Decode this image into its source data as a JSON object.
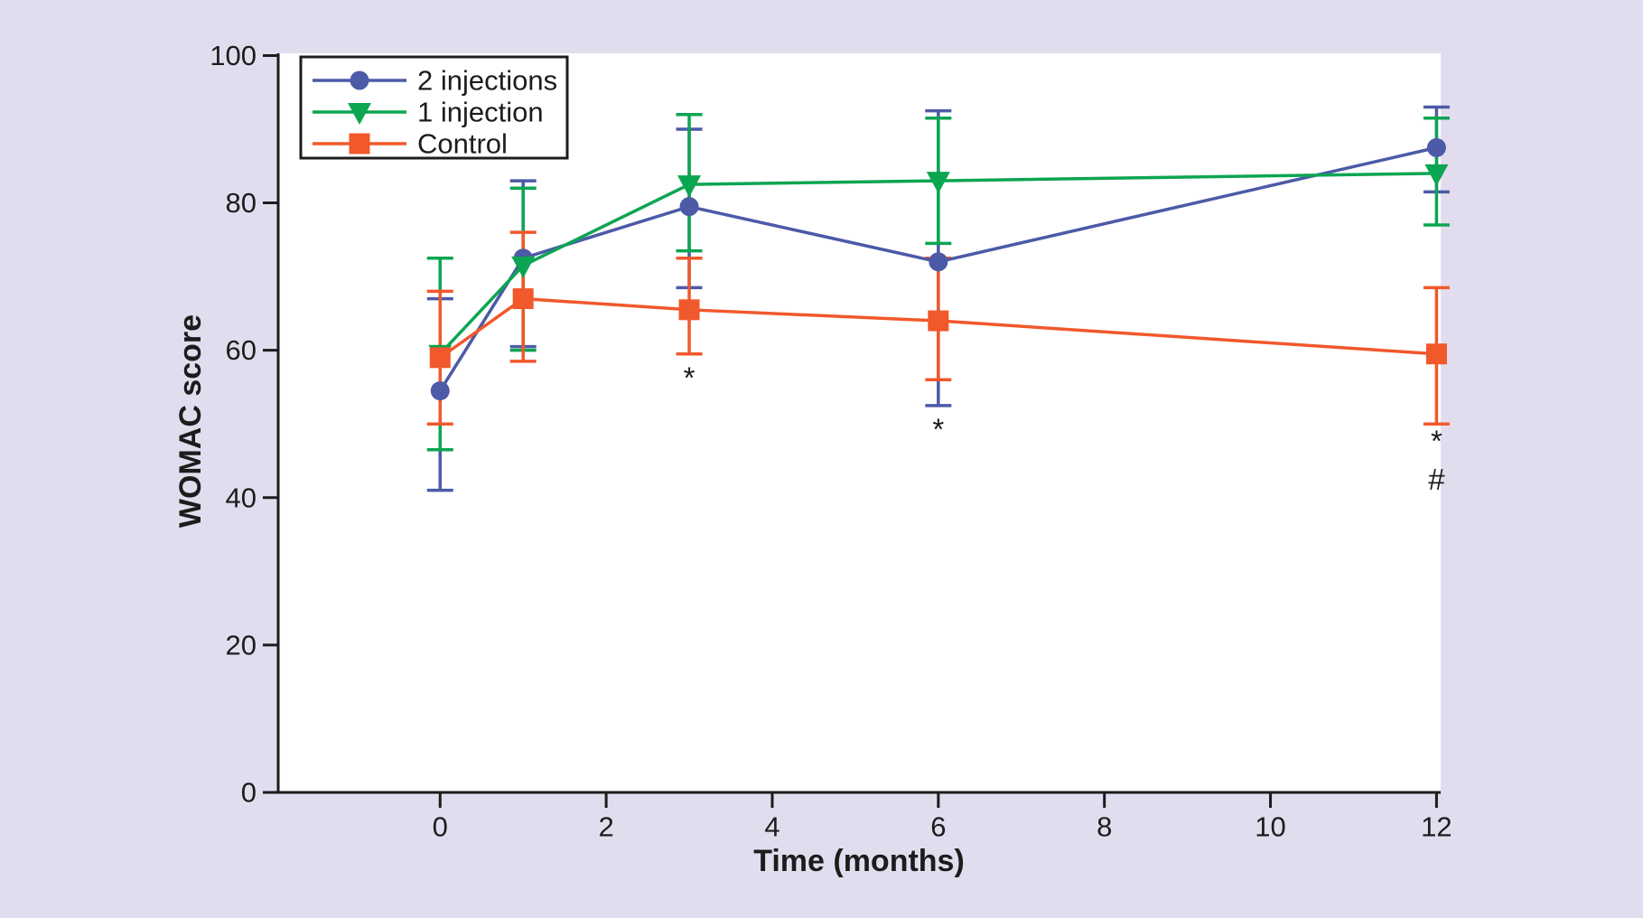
{
  "figure": {
    "background_color": "#e2ddee",
    "plot_background_color": "#ffffff",
    "axis_color": "#1c1c1c",
    "text_color": "#1c1c1c"
  },
  "chart_data": {
    "type": "line",
    "title": "",
    "xlabel": "Time (months)",
    "ylabel": "WOMAC score",
    "x": [
      0,
      1,
      3,
      6,
      12
    ],
    "x_tick_values": [
      0,
      2,
      4,
      6,
      8,
      10,
      12
    ],
    "x_tick_labels": [
      "0",
      "2",
      "4",
      "6",
      "8",
      "10",
      "12"
    ],
    "y_tick_values": [
      0,
      20,
      40,
      60,
      80,
      100
    ],
    "y_tick_labels": [
      "0",
      "20",
      "40",
      "60",
      "80",
      "100"
    ],
    "xlim": [
      -1.95,
      12.05
    ],
    "ylim": [
      0,
      100.3
    ],
    "grid": false,
    "legend_position": "top-left",
    "series": [
      {
        "name": "2 injections",
        "marker": "circle",
        "color": "#4c5aa7",
        "values": [
          54.5,
          72.5,
          79.5,
          72,
          87.5
        ],
        "err_plus": [
          12.5,
          10.5,
          10.5,
          20.5,
          5.5
        ],
        "err_minus": [
          13.5,
          12,
          11,
          19.5,
          6
        ]
      },
      {
        "name": "1 injection",
        "marker": "triangle-down",
        "color": "#0ca551",
        "values": [
          59.5,
          71.5,
          82.5,
          83,
          84
        ],
        "err_plus": [
          13,
          10.5,
          9.5,
          8.5,
          7.5
        ],
        "err_minus": [
          13,
          11.5,
          9,
          8.5,
          7
        ]
      },
      {
        "name": "Control",
        "marker": "square",
        "color": "#f1582b",
        "values": [
          59,
          67,
          65.5,
          64,
          59.5
        ],
        "err_plus": [
          9,
          9,
          7,
          8.5,
          9
        ],
        "err_minus": [
          9,
          8.5,
          6,
          8,
          9.5
        ]
      }
    ],
    "annotations": [
      {
        "x": 3,
        "y": 56.3,
        "text": "*"
      },
      {
        "x": 6,
        "y": 49.3,
        "text": "*"
      },
      {
        "x": 12,
        "y": 47.7,
        "text": "*"
      },
      {
        "x": 12,
        "y": 42.5,
        "text": "#"
      }
    ]
  }
}
